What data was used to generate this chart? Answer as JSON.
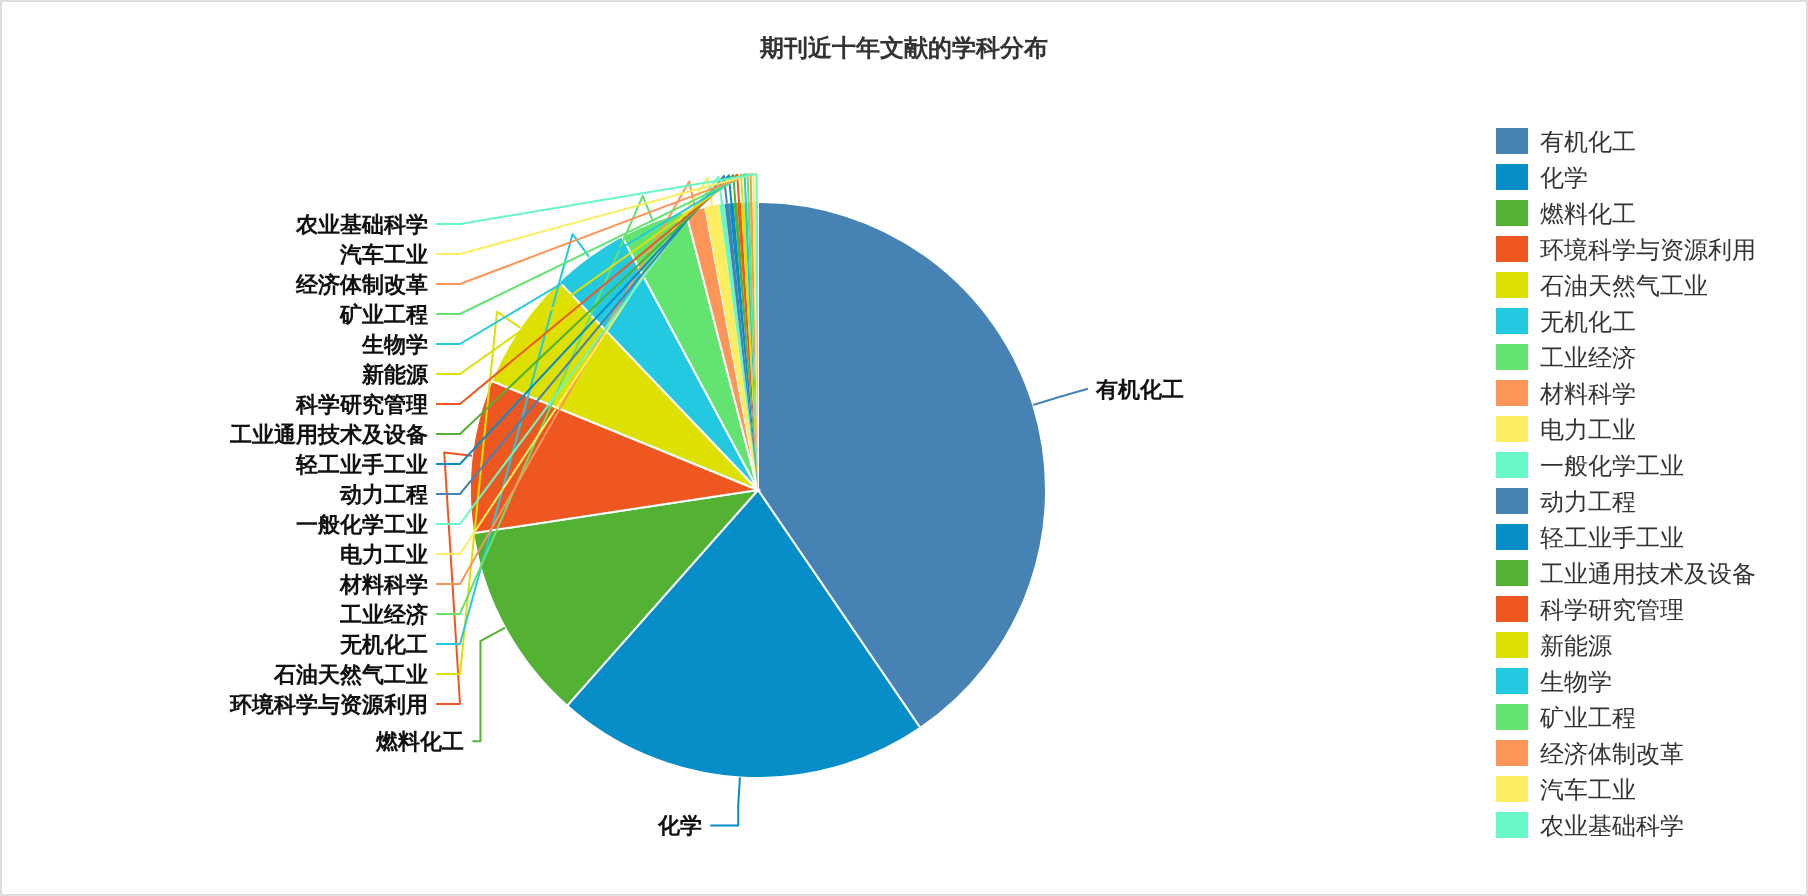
{
  "chart_data": {
    "type": "pie",
    "title": "期刊近十年文献的学科分布",
    "legend": "right",
    "categories": [
      "有机化工",
      "化学",
      "燃料化工",
      "环境科学与资源利用",
      "石油天然气工业",
      "无机化工",
      "工业经济",
      "材料科学",
      "电力工业",
      "一般化学工业",
      "动力工程",
      "轻工业手工业",
      "工业通用技术及设备",
      "科学研究管理",
      "新能源",
      "生物学",
      "矿业工程",
      "经济体制改革",
      "汽车工业",
      "农业基础科学"
    ],
    "values": [
      40.55,
      21.1,
      11.1,
      8.6,
      6.7,
      4.3,
      3.8,
      1.1,
      0.8,
      0.3,
      0.25,
      0.25,
      0.2,
      0.2,
      0.2,
      0.15,
      0.15,
      0.15,
      0.15,
      0.15
    ],
    "colors": [
      "#4682b4",
      "#078dc7",
      "#53b234",
      "#ee5720",
      "#dde000",
      "#23c9e0",
      "#63e36f",
      "#fd9458",
      "#fded60",
      "#67f9c5",
      "#4682b4",
      "#078dc7",
      "#53b234",
      "#ee5720",
      "#dde000",
      "#23c9e0",
      "#63e36f",
      "#fd9458",
      "#fded60",
      "#67f9c5"
    ]
  }
}
